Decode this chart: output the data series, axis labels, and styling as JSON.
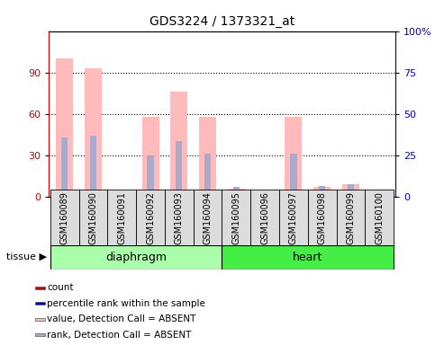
{
  "title": "GDS3224 / 1373321_at",
  "samples": [
    "GSM160089",
    "GSM160090",
    "GSM160091",
    "GSM160092",
    "GSM160093",
    "GSM160094",
    "GSM160095",
    "GSM160096",
    "GSM160097",
    "GSM160098",
    "GSM160099",
    "GSM160100"
  ],
  "groups": [
    {
      "name": "diaphragm",
      "indices": [
        0,
        1,
        2,
        3,
        4,
        5
      ],
      "color": "#aaffaa"
    },
    {
      "name": "heart",
      "indices": [
        6,
        7,
        8,
        9,
        10,
        11
      ],
      "color": "#44ee44"
    }
  ],
  "bar_values": [
    100,
    93,
    4,
    58,
    76,
    58,
    6,
    2,
    58,
    7,
    9,
    3
  ],
  "rank_values": [
    43,
    44,
    3,
    30,
    40,
    31,
    7,
    2,
    31,
    8,
    9,
    3
  ],
  "left_ylim": [
    0,
    120
  ],
  "right_ylim": [
    0,
    100
  ],
  "left_yticks": [
    0,
    30,
    60,
    90
  ],
  "right_yticks_values": [
    0,
    25,
    50,
    75,
    100
  ],
  "right_ytick_labels": [
    "0",
    "25",
    "50",
    "75",
    "100%"
  ],
  "bar_color_absent": "#ffbbbb",
  "rank_color_absent": "#aaaacc",
  "axis_color_left": "#cc0000",
  "axis_color_right": "#0000cc",
  "grid_yticks": [
    30,
    60,
    90
  ],
  "legend_items": [
    {
      "color": "#cc0000",
      "label": "count"
    },
    {
      "color": "#0000cc",
      "label": "percentile rank within the sample"
    },
    {
      "color": "#ffbbbb",
      "label": "value, Detection Call = ABSENT"
    },
    {
      "color": "#aaaacc",
      "label": "rank, Detection Call = ABSENT"
    }
  ],
  "bg_color": "#dcdcdc",
  "tissue_label": "tissue"
}
